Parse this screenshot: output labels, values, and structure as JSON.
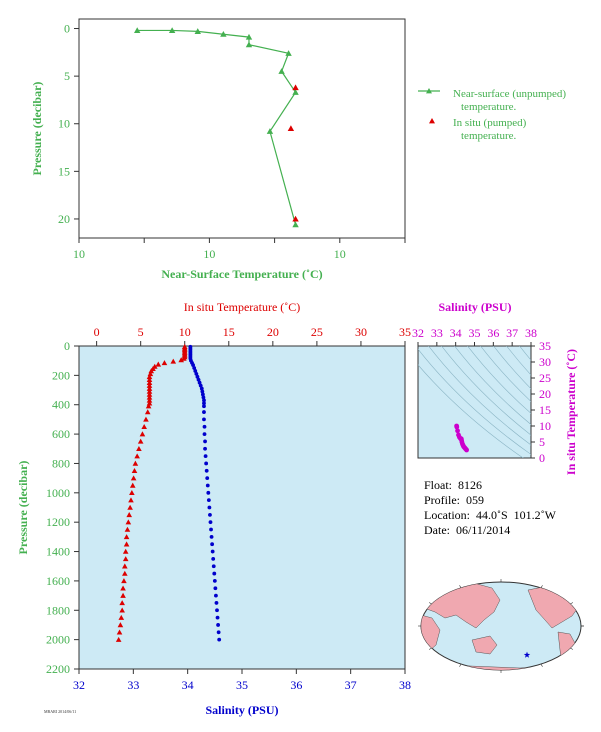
{
  "colors": {
    "green": "#44b050",
    "red": "#dd0000",
    "blue": "#0000cc",
    "magenta": "#cc00cc",
    "panel_bg": "#cdeaf5",
    "land": "#f0a8b0",
    "ocean": "#cdeaf5"
  },
  "info": {
    "float": "Float:  8126",
    "profile": "Profile:  059",
    "location": "Location:  44.0˚S  101.2˚W",
    "date": "Date:  06/11/2014"
  },
  "footer_code": "MBARI 2014/06/11",
  "chart_data": [
    {
      "type": "scatter",
      "xlabel": "Near-Surface Temperature (˚C)",
      "ylabel": "Pressure (decibar)",
      "x_tick_labels": [
        "10",
        "10",
        "10",
        "10",
        "10",
        "10"
      ],
      "xlim": [
        9.95,
        10.09
      ],
      "ylim": [
        22,
        -1
      ],
      "y_ticks": [
        0,
        5,
        10,
        15,
        20
      ],
      "legend_position": "right",
      "series": [
        {
          "name": "Near-surface (unpumped) temperature.",
          "marker": "triangle-line",
          "points": [
            [
              9.975,
              0.2
            ],
            [
              9.99,
              0.2
            ],
            [
              10.001,
              0.3
            ],
            [
              10.012,
              0.6
            ],
            [
              10.023,
              0.9
            ],
            [
              10.023,
              1.7
            ],
            [
              10.04,
              2.6
            ],
            [
              10.037,
              4.5
            ],
            [
              10.043,
              6.7
            ],
            [
              10.032,
              10.8
            ],
            [
              10.043,
              20.6
            ]
          ]
        },
        {
          "name": "In situ (pumped) temperature.",
          "marker": "triangle",
          "points": [
            [
              10.043,
              6.2
            ],
            [
              10.041,
              10.5
            ],
            [
              10.043,
              20.0
            ]
          ]
        }
      ]
    },
    {
      "type": "scatter",
      "xlabel_top": "In situ Temperature (˚C)",
      "xlabel_bottom": "Salinity (PSU)",
      "ylabel": "Pressure (decibar)",
      "temp_xlim": [
        -2,
        35
      ],
      "temp_ticks": [
        0,
        5,
        10,
        15,
        20,
        25,
        30,
        35
      ],
      "sal_xlim": [
        32,
        38
      ],
      "sal_ticks": [
        32,
        33,
        34,
        35,
        36,
        37,
        38
      ],
      "ylim": [
        2200,
        0
      ],
      "y_ticks": [
        0,
        200,
        400,
        600,
        800,
        1000,
        1200,
        1400,
        1600,
        1800,
        2000,
        2200
      ],
      "series": [
        {
          "name": "In situ Temperature (˚C)",
          "marker": "triangle",
          "points": [
            [
              10.0,
              5
            ],
            [
              10.0,
              15
            ],
            [
              10.0,
              25
            ],
            [
              10.0,
              35
            ],
            [
              10.0,
              45
            ],
            [
              10.0,
              55
            ],
            [
              10.0,
              65
            ],
            [
              10.0,
              75
            ],
            [
              9.9,
              85
            ],
            [
              9.6,
              95
            ],
            [
              8.7,
              105
            ],
            [
              7.7,
              115
            ],
            [
              7.0,
              125
            ],
            [
              6.6,
              140
            ],
            [
              6.4,
              155
            ],
            [
              6.2,
              170
            ],
            [
              6.1,
              190
            ],
            [
              6.0,
              210
            ],
            [
              6.0,
              230
            ],
            [
              6.0,
              250
            ],
            [
              6.0,
              270
            ],
            [
              6.0,
              290
            ],
            [
              6.0,
              310
            ],
            [
              6.0,
              330
            ],
            [
              6.0,
              350
            ],
            [
              6.0,
              370
            ],
            [
              6.0,
              390
            ],
            [
              5.9,
              410
            ],
            [
              5.8,
              450
            ],
            [
              5.6,
              500
            ],
            [
              5.4,
              550
            ],
            [
              5.2,
              600
            ],
            [
              5.0,
              650
            ],
            [
              4.8,
              700
            ],
            [
              4.6,
              750
            ],
            [
              4.4,
              800
            ],
            [
              4.3,
              850
            ],
            [
              4.2,
              900
            ],
            [
              4.1,
              950
            ],
            [
              4.0,
              1000
            ],
            [
              3.9,
              1050
            ],
            [
              3.8,
              1100
            ],
            [
              3.7,
              1150
            ],
            [
              3.6,
              1200
            ],
            [
              3.5,
              1250
            ],
            [
              3.4,
              1300
            ],
            [
              3.4,
              1350
            ],
            [
              3.3,
              1400
            ],
            [
              3.3,
              1450
            ],
            [
              3.2,
              1500
            ],
            [
              3.2,
              1550
            ],
            [
              3.1,
              1600
            ],
            [
              3.0,
              1650
            ],
            [
              3.0,
              1700
            ],
            [
              2.9,
              1750
            ],
            [
              2.9,
              1800
            ],
            [
              2.8,
              1850
            ],
            [
              2.7,
              1900
            ],
            [
              2.6,
              1950
            ],
            [
              2.5,
              2000
            ]
          ]
        },
        {
          "name": "Salinity (PSU)",
          "marker": "circle",
          "points": [
            [
              34.05,
              5
            ],
            [
              34.05,
              15
            ],
            [
              34.05,
              25
            ],
            [
              34.05,
              35
            ],
            [
              34.05,
              45
            ],
            [
              34.05,
              55
            ],
            [
              34.05,
              65
            ],
            [
              34.05,
              75
            ],
            [
              34.05,
              85
            ],
            [
              34.06,
              100
            ],
            [
              34.08,
              115
            ],
            [
              34.1,
              130
            ],
            [
              34.12,
              150
            ],
            [
              34.14,
              170
            ],
            [
              34.16,
              190
            ],
            [
              34.18,
              210
            ],
            [
              34.2,
              230
            ],
            [
              34.22,
              250
            ],
            [
              34.24,
              270
            ],
            [
              34.26,
              290
            ],
            [
              34.27,
              310
            ],
            [
              34.28,
              330
            ],
            [
              34.29,
              350
            ],
            [
              34.3,
              370
            ],
            [
              34.3,
              390
            ],
            [
              34.3,
              410
            ],
            [
              34.3,
              450
            ],
            [
              34.3,
              500
            ],
            [
              34.31,
              550
            ],
            [
              34.31,
              600
            ],
            [
              34.32,
              650
            ],
            [
              34.32,
              700
            ],
            [
              34.33,
              750
            ],
            [
              34.34,
              800
            ],
            [
              34.35,
              850
            ],
            [
              34.36,
              900
            ],
            [
              34.37,
              950
            ],
            [
              34.38,
              1000
            ],
            [
              34.39,
              1050
            ],
            [
              34.4,
              1100
            ],
            [
              34.41,
              1150
            ],
            [
              34.42,
              1200
            ],
            [
              34.43,
              1250
            ],
            [
              34.44,
              1300
            ],
            [
              34.45,
              1350
            ],
            [
              34.46,
              1400
            ],
            [
              34.47,
              1450
            ],
            [
              34.48,
              1500
            ],
            [
              34.49,
              1550
            ],
            [
              34.5,
              1600
            ],
            [
              34.51,
              1650
            ],
            [
              34.52,
              1700
            ],
            [
              34.53,
              1750
            ],
            [
              34.54,
              1800
            ],
            [
              34.55,
              1850
            ],
            [
              34.56,
              1900
            ],
            [
              34.57,
              1950
            ],
            [
              34.58,
              2000
            ]
          ]
        }
      ]
    },
    {
      "type": "scatter",
      "xlabel": "Salinity (PSU)",
      "ylabel": "In situ Temperature (˚C)",
      "xlim": [
        32,
        38
      ],
      "x_ticks": [
        32,
        33,
        34,
        35,
        36,
        37,
        38
      ],
      "ylim": [
        0,
        35
      ],
      "y_ticks": [
        0,
        5,
        10,
        15,
        20,
        25,
        30,
        35
      ],
      "contours": "density isopleths",
      "points": [
        [
          34.05,
          10.0
        ],
        [
          34.06,
          9.7
        ],
        [
          34.1,
          8.5
        ],
        [
          34.15,
          7.2
        ],
        [
          34.2,
          6.5
        ],
        [
          34.25,
          6.1
        ],
        [
          34.3,
          6.0
        ],
        [
          34.31,
          5.6
        ],
        [
          34.33,
          5.0
        ],
        [
          34.36,
          4.4
        ],
        [
          34.39,
          4.0
        ],
        [
          34.42,
          3.6
        ],
        [
          34.45,
          3.4
        ],
        [
          34.48,
          3.2
        ],
        [
          34.51,
          3.0
        ],
        [
          34.54,
          2.8
        ],
        [
          34.58,
          2.5
        ]
      ]
    }
  ]
}
